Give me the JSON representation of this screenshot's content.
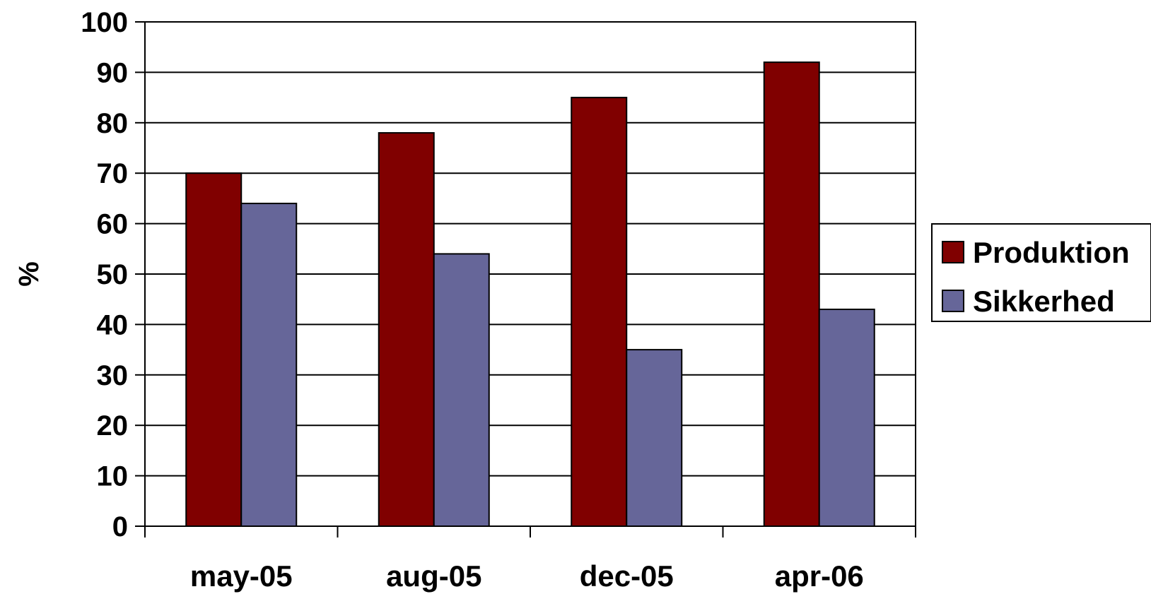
{
  "chart_data": {
    "type": "bar",
    "title": "",
    "xlabel": "",
    "ylabel": "%",
    "ylim": [
      0,
      100
    ],
    "yticks": [
      0,
      10,
      20,
      30,
      40,
      50,
      60,
      70,
      80,
      90,
      100
    ],
    "categories": [
      "may-05",
      "aug-05",
      "dec-05",
      "apr-06"
    ],
    "series": [
      {
        "name": "Produktion",
        "values": [
          70,
          78,
          85,
          92
        ],
        "color": "#800000"
      },
      {
        "name": "Sikkerhed",
        "values": [
          64,
          54,
          35,
          43
        ],
        "color": "#666699"
      }
    ],
    "grid": true,
    "legend_position": "right"
  }
}
